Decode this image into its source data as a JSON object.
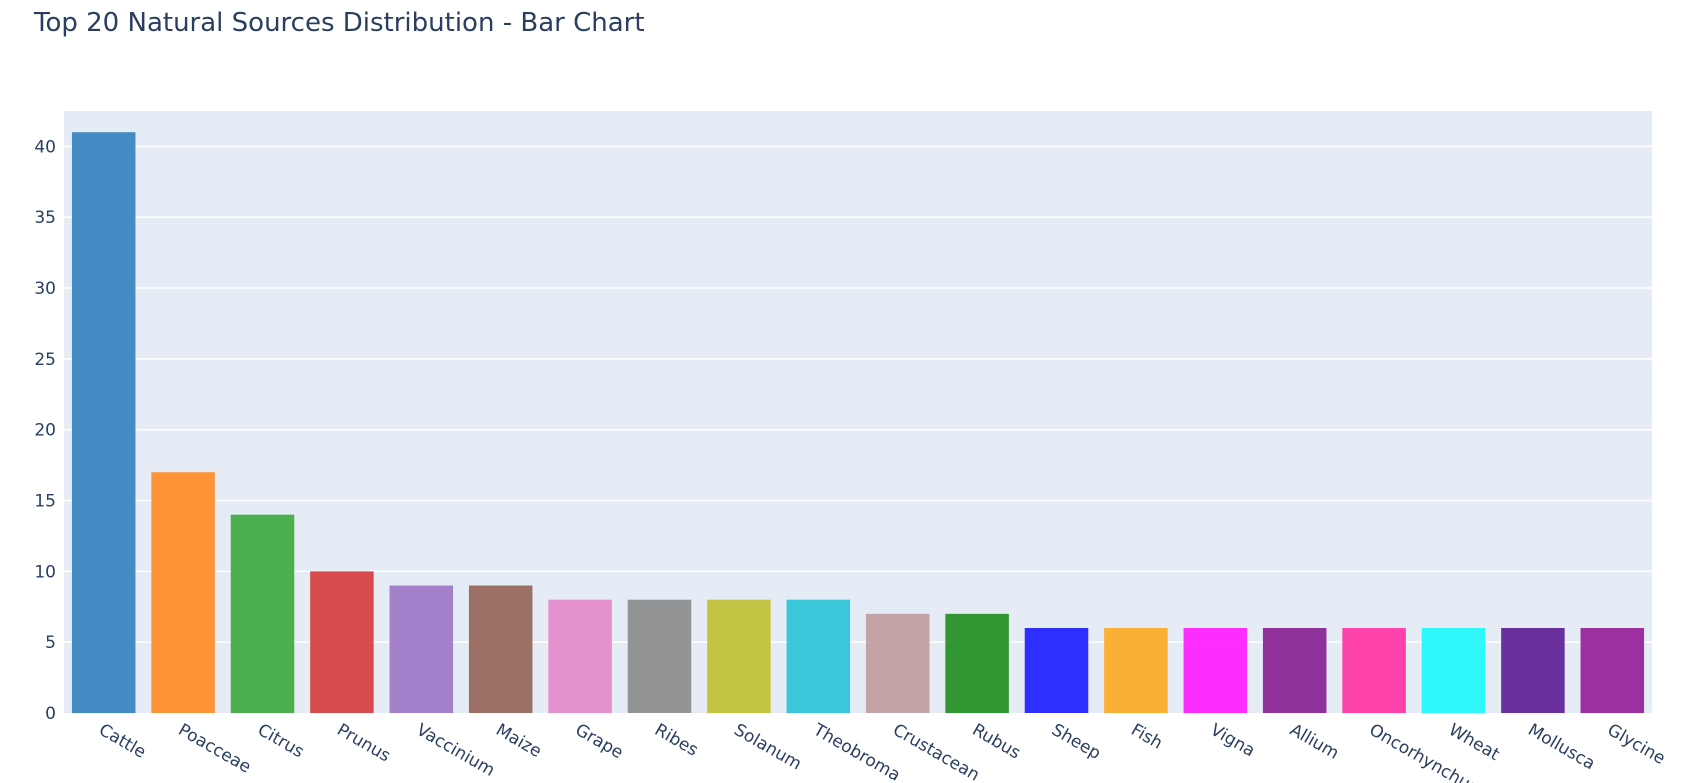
{
  "chart_data": {
    "type": "bar",
    "title": "Top 20 Natural Sources Distribution - Bar Chart",
    "xlabel": "",
    "ylabel": "",
    "ylim": [
      0,
      42.5
    ],
    "yticks": [
      0,
      5,
      10,
      15,
      20,
      25,
      30,
      35,
      40
    ],
    "grid": true,
    "categories": [
      "Cattle",
      "Poacceae",
      "Citrus",
      "Prunus",
      "Vaccinium",
      "Maize",
      "Grape",
      "Ribes",
      "Solanum",
      "Theobroma",
      "Crustacean",
      "Rubus",
      "Sheep",
      "Fish",
      "Vigna",
      "Allium",
      "Oncorhynchus",
      "Wheat",
      "Mollusca",
      "Glycine"
    ],
    "values": [
      41,
      17,
      14,
      10,
      9,
      9,
      8,
      8,
      8,
      8,
      7,
      7,
      6,
      6,
      6,
      6,
      6,
      6,
      6,
      6
    ],
    "colors": [
      "#3582bd",
      "#ff8c26",
      "#3faa3f",
      "#d73e3e",
      "#9d76c4",
      "#976559",
      "#e489c9",
      "#8b8c8d",
      "#c0c034",
      "#2cc3d7",
      "#c19c9e",
      "#1f8e1f",
      "#1e1eff",
      "#fbaa23",
      "#ff1cff",
      "#881f92",
      "#ff33a4",
      "#1ff7fa",
      "#5e2095",
      "#961f98"
    ]
  }
}
